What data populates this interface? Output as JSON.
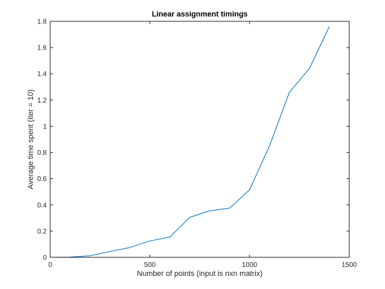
{
  "chart_data": {
    "type": "line",
    "title": "Linear assignment timings",
    "xlabel": "Number of points (input is nxn matrix)",
    "ylabel": "Average time spent (iter = 10)",
    "xlim": [
      0,
      1500
    ],
    "ylim": [
      0,
      1.8
    ],
    "xticks": [
      0,
      500,
      1000,
      1500
    ],
    "xtick_labels": [
      "0",
      "500",
      "1000",
      "1500"
    ],
    "yticks": [
      0,
      0.2,
      0.4,
      0.6,
      0.8,
      1,
      1.2,
      1.4,
      1.6,
      1.8
    ],
    "ytick_labels": [
      "0",
      "0.2",
      "0.4",
      "0.6",
      "0.8",
      "1",
      "1.2",
      "1.4",
      "1.6",
      "1.8"
    ],
    "grid": false,
    "series": [
      {
        "color": "#0072bd",
        "x": [
          0,
          100,
          200,
          300,
          400,
          500,
          600,
          700,
          800,
          900,
          1000,
          1100,
          1200,
          1300,
          1400
        ],
        "y": [
          0.0,
          0.002,
          0.012,
          0.045,
          0.075,
          0.125,
          0.155,
          0.305,
          0.355,
          0.375,
          0.515,
          0.85,
          1.26,
          1.44,
          1.76
        ]
      }
    ]
  }
}
